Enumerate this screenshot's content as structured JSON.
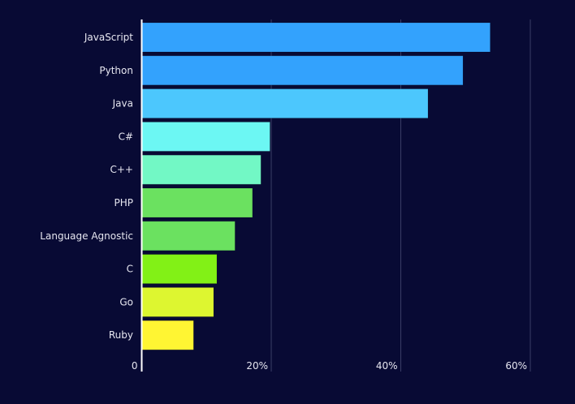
{
  "chart_data": {
    "type": "bar",
    "orientation": "horizontal",
    "title": "",
    "xlabel": "",
    "ylabel": "",
    "categories": [
      "JavaScript",
      "Python",
      "Java",
      "C#",
      "C++",
      "PHP",
      "Language Agnostic",
      "C",
      "Go",
      "Ruby"
    ],
    "values": [
      53.8,
      49.6,
      44.2,
      19.8,
      18.4,
      17.1,
      14.4,
      11.6,
      11.1,
      8.0
    ],
    "colors": [
      "#33a2fd",
      "#33a2fd",
      "#4cc7fd",
      "#6cf7f3",
      "#72f8c5",
      "#6be160",
      "#6be160",
      "#82f116",
      "#ddf630",
      "#fff533"
    ],
    "xlim": [
      0,
      63
    ],
    "x_ticks": [
      0,
      20,
      40,
      60
    ],
    "x_tick_labels": [
      "0",
      "20%",
      "40%",
      "60%"
    ],
    "grid": true,
    "background": "#080a34"
  }
}
